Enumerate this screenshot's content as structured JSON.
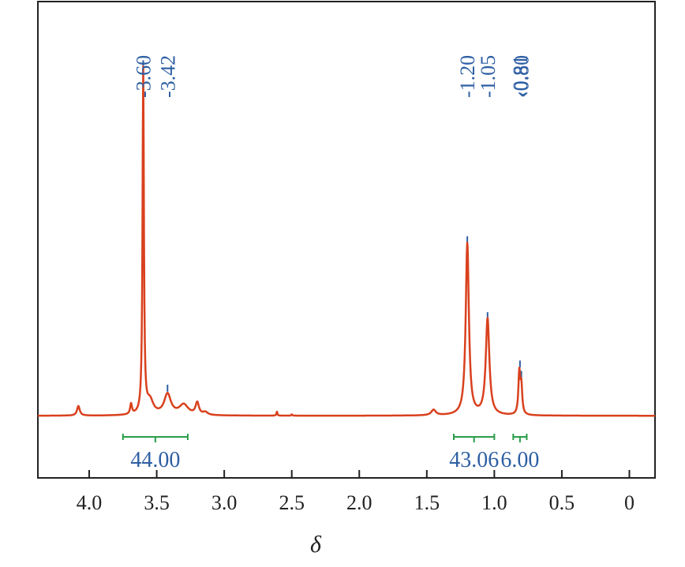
{
  "chart_data": {
    "type": "line",
    "title": "",
    "xlabel": "δ",
    "ylabel": "",
    "xlim": [
      4.38,
      -0.19
    ],
    "x_reversed": true,
    "ylim": [
      -0.18,
      1.2
    ],
    "grid": false,
    "x_ticks": [
      {
        "value": 4.0,
        "label": "4.0"
      },
      {
        "value": 3.5,
        "label": "3.5"
      },
      {
        "value": 3.0,
        "label": "3.0"
      },
      {
        "value": 2.5,
        "label": "2.5"
      },
      {
        "value": 2.0,
        "label": "2.0"
      },
      {
        "value": 1.5,
        "label": "1.5"
      },
      {
        "value": 1.0,
        "label": "1.0"
      },
      {
        "value": 0.5,
        "label": "0.5"
      },
      {
        "value": 0.0,
        "label": "0"
      }
    ],
    "series": [
      {
        "line_color": "#d9411e",
        "peaks": [
          {
            "center": 4.08,
            "height": 0.028,
            "width": 0.012
          },
          {
            "center": 3.69,
            "height": 0.03,
            "width": 0.008
          },
          {
            "center": 3.6,
            "height": 1.0,
            "width": 0.006
          },
          {
            "center": 3.55,
            "height": 0.04,
            "width": 0.03
          },
          {
            "center": 3.42,
            "height": 0.06,
            "width": 0.03
          },
          {
            "center": 3.3,
            "height": 0.03,
            "width": 0.04
          },
          {
            "center": 3.2,
            "height": 0.035,
            "width": 0.015
          },
          {
            "center": 3.14,
            "height": 0.008,
            "width": 0.02
          },
          {
            "center": 2.61,
            "height": 0.012,
            "width": 0.004
          },
          {
            "center": 2.5,
            "height": 0.004,
            "width": 0.004
          },
          {
            "center": 1.45,
            "height": 0.016,
            "width": 0.02
          },
          {
            "center": 1.2,
            "height": 0.5,
            "width": 0.014
          },
          {
            "center": 1.05,
            "height": 0.28,
            "width": 0.016
          },
          {
            "center": 0.815,
            "height": 0.12,
            "width": 0.008
          },
          {
            "center": 0.8,
            "height": 0.08,
            "width": 0.008
          }
        ]
      }
    ],
    "peak_labels": [
      {
        "label": "-3.60",
        "value": 3.6,
        "tick_height": 1.03
      },
      {
        "label": "-3.42",
        "value": 3.42,
        "tick_height": 0.09
      },
      {
        "label": "-1.20",
        "value": 1.2,
        "tick_height": 0.52
      },
      {
        "label": "-1.05",
        "value": 1.05,
        "tick_height": 0.3
      },
      {
        "label": "‹0.81",
        "value": 0.81,
        "tick_height": 0.16
      },
      {
        "label": "‹0.80",
        "value": 0.8,
        "tick_height": 0.13
      }
    ],
    "integrations": [
      {
        "label": "44.00",
        "from": 3.75,
        "to": 3.27
      },
      {
        "label": "43.06",
        "from": 1.3,
        "to": 1.0
      },
      {
        "label": "6.00",
        "from": 0.86,
        "to": 0.76
      }
    ],
    "colors": {
      "spectrum": "#d9411e",
      "peak_label": "#2e5fa3",
      "integration": "#2a9d48",
      "axis": "#222222"
    }
  }
}
